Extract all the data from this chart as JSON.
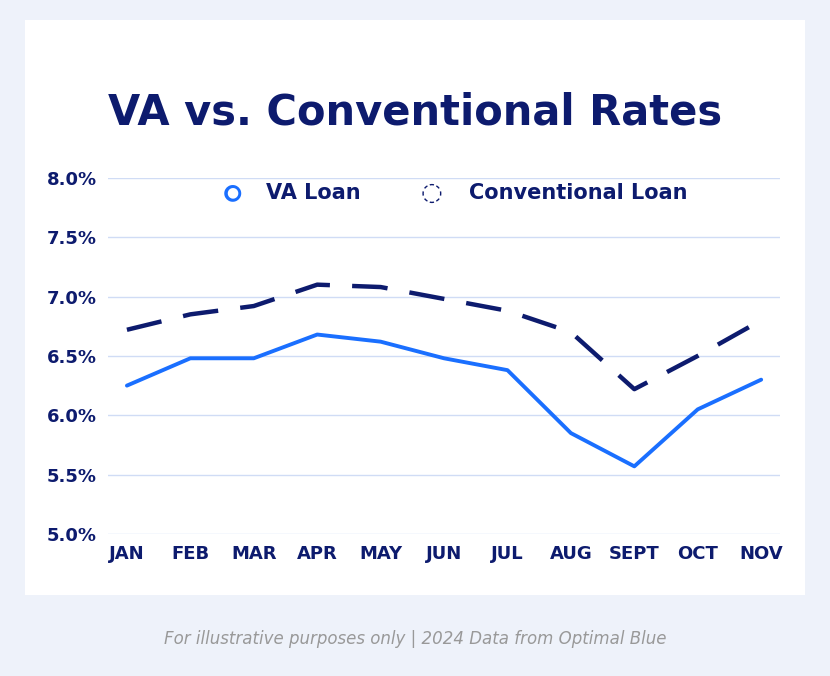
{
  "title": "VA vs. Conventional Rates",
  "subtitle": "For illustrative purposes only | 2024 Data from Optimal Blue",
  "months": [
    "JAN",
    "FEB",
    "MAR",
    "APR",
    "MAY",
    "JUN",
    "JUL",
    "AUG",
    "SEPT",
    "OCT",
    "NOV"
  ],
  "va_loan": [
    6.25,
    6.48,
    6.48,
    6.68,
    6.62,
    6.48,
    6.38,
    5.85,
    5.57,
    6.05,
    6.3
  ],
  "conventional_loan": [
    6.72,
    6.85,
    6.92,
    7.1,
    7.08,
    6.98,
    6.88,
    6.7,
    6.22,
    6.5,
    6.8
  ],
  "va_color": "#1a6fff",
  "conv_color": "#0d1b6e",
  "background_color": "#eef2fa",
  "card_color": "#ffffff",
  "ylim": [
    5.0,
    8.0
  ],
  "yticks": [
    5.0,
    5.5,
    6.0,
    6.5,
    7.0,
    7.5,
    8.0
  ],
  "title_color": "#0d1b6e",
  "label_color": "#0d1b6e",
  "grid_color": "#d0dcf5",
  "title_fontsize": 30,
  "legend_fontsize": 15,
  "tick_fontsize": 13,
  "footer_fontsize": 12
}
